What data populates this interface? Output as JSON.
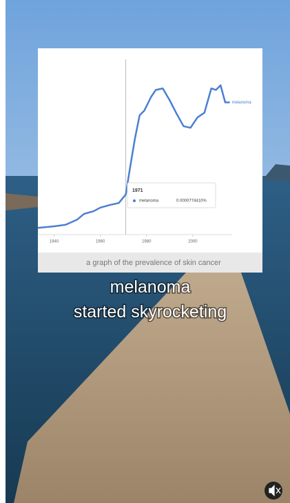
{
  "chart_data": {
    "type": "line",
    "x": [
      1933,
      1940,
      1945,
      1950,
      1953,
      1957,
      1960,
      1964,
      1968,
      1971,
      1973,
      1975,
      1977,
      1979,
      1982,
      1984,
      1987,
      1990,
      1993,
      1996,
      1999,
      2002,
      2005,
      2008,
      2010,
      2012,
      2014,
      2016
    ],
    "series": [
      {
        "name": "melanoma",
        "color": "#4a7fd0",
        "values": [
          1.3e-05,
          1.6e-05,
          1.9e-05,
          2.9e-05,
          4e-05,
          4.5e-05,
          5.2e-05,
          5.7e-05,
          6.1e-05,
          7.7441e-05,
          0.000133,
          0.000186,
          0.00023,
          0.000239,
          0.000266,
          0.000279,
          0.000282,
          0.000259,
          0.000233,
          0.000209,
          0.000206,
          0.000226,
          0.000235,
          0.000282,
          0.000279,
          0.000288,
          0.000255,
          0.000255
        ]
      }
    ],
    "xlim": [
      1933,
      2017
    ],
    "xticks": [
      1940,
      1960,
      1980,
      2000
    ],
    "ylim": [
      0,
      0.00035
    ],
    "tooltip": {
      "x": 1971,
      "value": 7.7441e-05,
      "value_label": "0.0000774410%"
    }
  },
  "caption": "a graph of the prevalence of skin cancer",
  "overlay_text": [
    "melanoma",
    "started skyrocketing"
  ]
}
